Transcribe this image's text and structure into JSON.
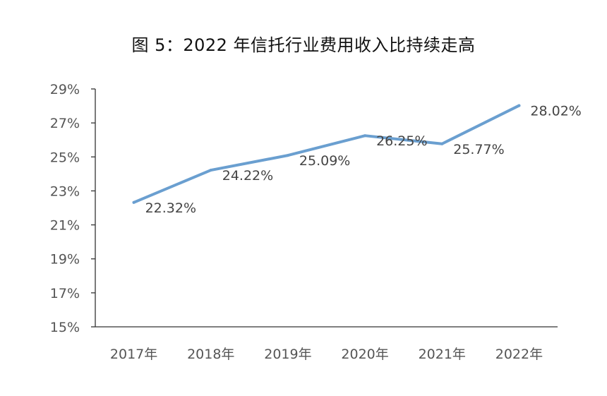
{
  "chart_data": {
    "type": "line",
    "title": "图 5：2022 年信托行业费用收入比持续走高",
    "xlabel": "",
    "ylabel": "",
    "categories": [
      "2017年",
      "2018年",
      "2019年",
      "2020年",
      "2021年",
      "2022年"
    ],
    "series": [
      {
        "values": [
          22.32,
          24.22,
          25.09,
          26.25,
          25.77,
          28.02
        ],
        "labels": [
          "22.32%",
          "24.22%",
          "25.09%",
          "26.25%",
          "25.77%",
          "28.02%"
        ],
        "color": "#6a9fd0"
      }
    ],
    "ylim": [
      15,
      29
    ],
    "yticks": [
      15,
      17,
      19,
      21,
      23,
      25,
      27,
      29
    ],
    "ytick_labels": [
      "15%",
      "17%",
      "19%",
      "21%",
      "23%",
      "25%",
      "27%",
      "29%"
    ],
    "grid": false,
    "legend": "none",
    "axis_color": "#333333"
  }
}
